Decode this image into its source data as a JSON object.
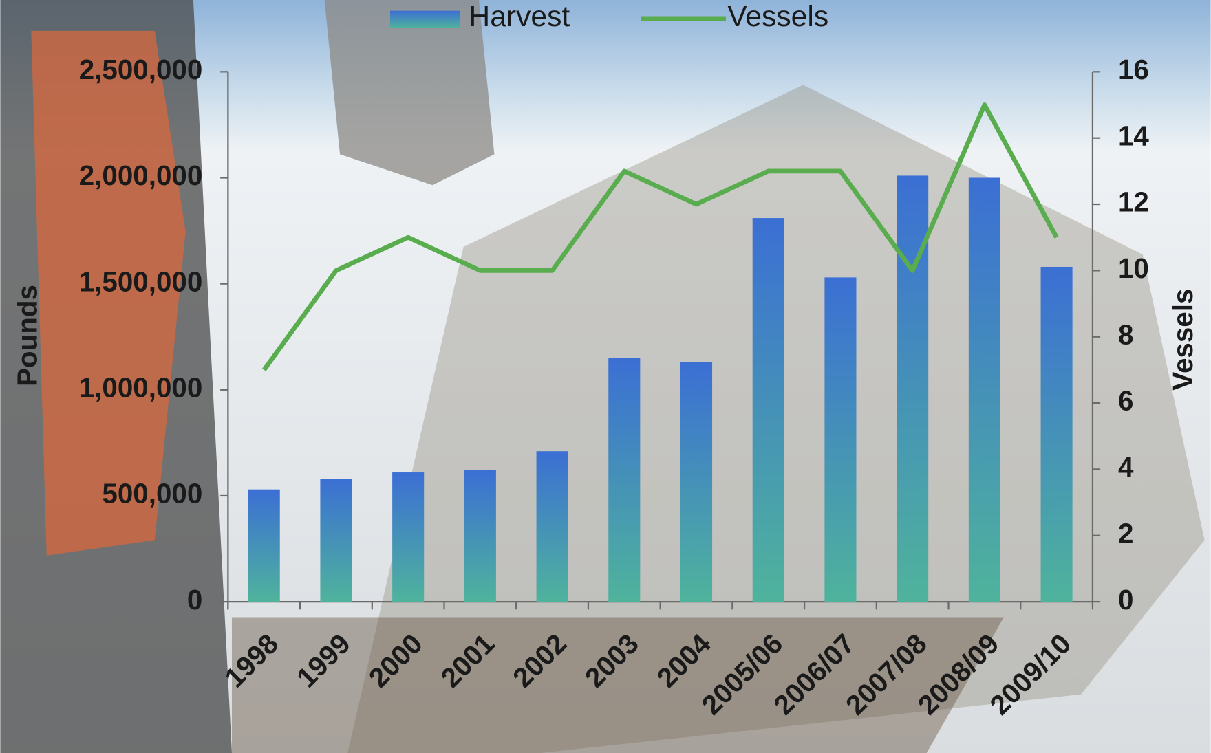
{
  "chart_data": {
    "type": "bar",
    "categories": [
      "1998",
      "1999",
      "2000",
      "2001",
      "2002",
      "2003",
      "2004",
      "2005/06",
      "2006/07",
      "2007/08",
      "2008/09",
      "2009/10"
    ],
    "series": [
      {
        "name": "Harvest",
        "type": "bar",
        "color": "#3b6fd4",
        "values": [
          530000,
          580000,
          610000,
          620000,
          710000,
          1150000,
          1130000,
          1810000,
          1530000,
          2010000,
          2000000,
          1580000
        ]
      },
      {
        "name": "Vessels",
        "type": "line",
        "axis": "y2",
        "color": "#5aad4e",
        "values": [
          7,
          10,
          11,
          10,
          10,
          13,
          12,
          13,
          13,
          10,
          15,
          11
        ]
      }
    ],
    "ylabel": "Pounds",
    "y2label": "Vessels",
    "ylim": [
      0,
      2500000
    ],
    "yticks": [
      0,
      {
        "value": 500000,
        "label": "500,000"
      },
      {
        "value": 1000000,
        "label": "1,000,000"
      },
      {
        "value": 1500000,
        "label": "1,500,000"
      },
      {
        "value": 2000000,
        "label": "2,000,000"
      },
      {
        "value": 2500000,
        "label": "2,500,000"
      }
    ],
    "y2lim": [
      0,
      16
    ],
    "y2ticks": [
      0,
      2,
      4,
      6,
      8,
      10,
      12,
      14,
      16
    ],
    "legend": "top"
  }
}
